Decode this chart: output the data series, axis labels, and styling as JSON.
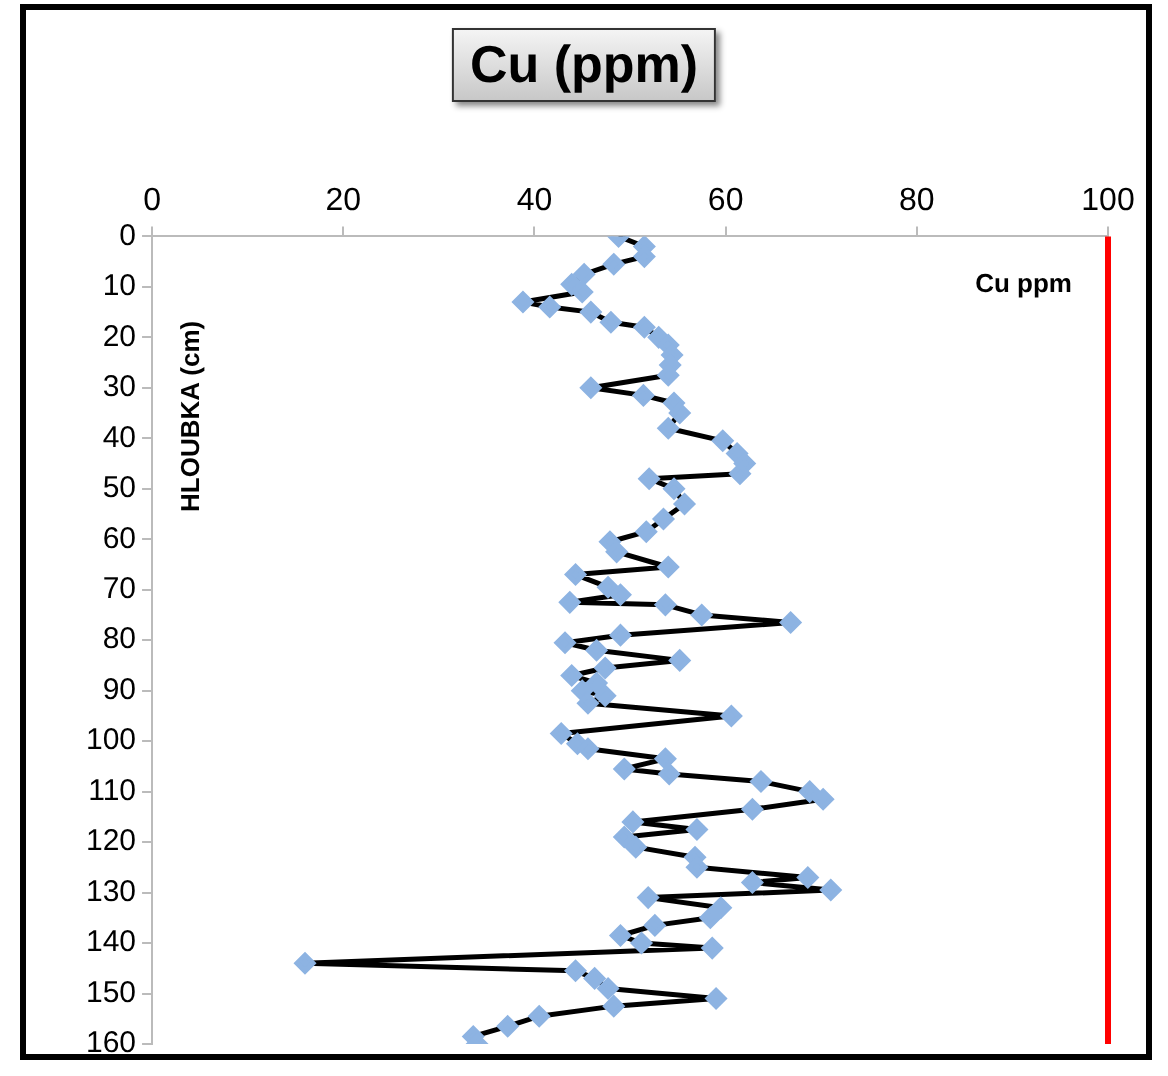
{
  "chart_data": {
    "type": "line",
    "title": "Cu (ppm)",
    "ylabel": "HLOUBKA (cm)",
    "xlim": [
      0,
      100
    ],
    "xticks": [
      0,
      20,
      40,
      60,
      80,
      100
    ],
    "ylim": [
      160,
      0
    ],
    "yticks": [
      0,
      10,
      20,
      30,
      40,
      50,
      60,
      70,
      80,
      90,
      100,
      110,
      120,
      130,
      140,
      150,
      160
    ],
    "grid": false,
    "legend": false,
    "marker": "diamond",
    "line_style": "solid",
    "ref_lines": [
      {
        "axis": "x",
        "value": 100,
        "label": "Cu ppm",
        "color": "#ff0000"
      }
    ],
    "series": [
      {
        "color": "#8db3e2",
        "x": [
          48.8,
          51.5,
          51.5,
          48.3,
          45.2,
          43.9,
          45,
          38.8,
          41.6,
          45.9,
          48,
          51.5,
          53,
          54,
          54.4,
          54.2,
          54,
          45.9,
          51.4,
          54.6,
          55.2,
          54,
          59.7,
          61.2,
          62,
          61.5,
          52,
          54.6,
          55.7,
          53.5,
          51.7,
          47.9,
          48.6,
          54,
          44.3,
          47.7,
          49,
          43.7,
          53.7,
          57.5,
          66.8,
          49,
          43.2,
          46.5,
          55.2,
          47.4,
          43.9,
          46.5,
          45,
          47.4,
          45.6,
          60.6,
          42.8,
          44.5,
          45.6,
          53.7,
          49.4,
          54.1,
          63.7,
          68.8,
          70.2,
          62.8,
          50.3,
          57,
          49.4,
          50.6,
          56.8,
          57,
          68.6,
          62.8,
          71,
          51.9,
          59.5,
          58.4,
          52.6,
          49,
          51.2,
          58.6,
          16,
          44.3,
          46.3,
          47.7,
          59,
          48.3,
          40.5,
          37.2,
          33.6,
          34
        ],
        "values": [
          0,
          2,
          4,
          5.5,
          7.5,
          9.5,
          11,
          13,
          14,
          15,
          17,
          18,
          20,
          21.5,
          23.5,
          25.5,
          27.5,
          30,
          31.5,
          33,
          35,
          38,
          40.5,
          43,
          45,
          47,
          48,
          50,
          53,
          56,
          58.5,
          60.5,
          62.5,
          65.5,
          67,
          69.5,
          71,
          72.5,
          73,
          75,
          76.5,
          79,
          80.5,
          82,
          84,
          85.5,
          87,
          88.5,
          90,
          91,
          92.5,
          95,
          98.5,
          100.5,
          101.5,
          103.5,
          105.5,
          106.5,
          108,
          110,
          111.5,
          113.5,
          116,
          117.5,
          119,
          121,
          123,
          125,
          127,
          128,
          129.5,
          131,
          133,
          135,
          136.5,
          138.5,
          140,
          141,
          144,
          145.5,
          147,
          149,
          151,
          152.5,
          154.5,
          156.5,
          158.5,
          160
        ]
      }
    ]
  }
}
